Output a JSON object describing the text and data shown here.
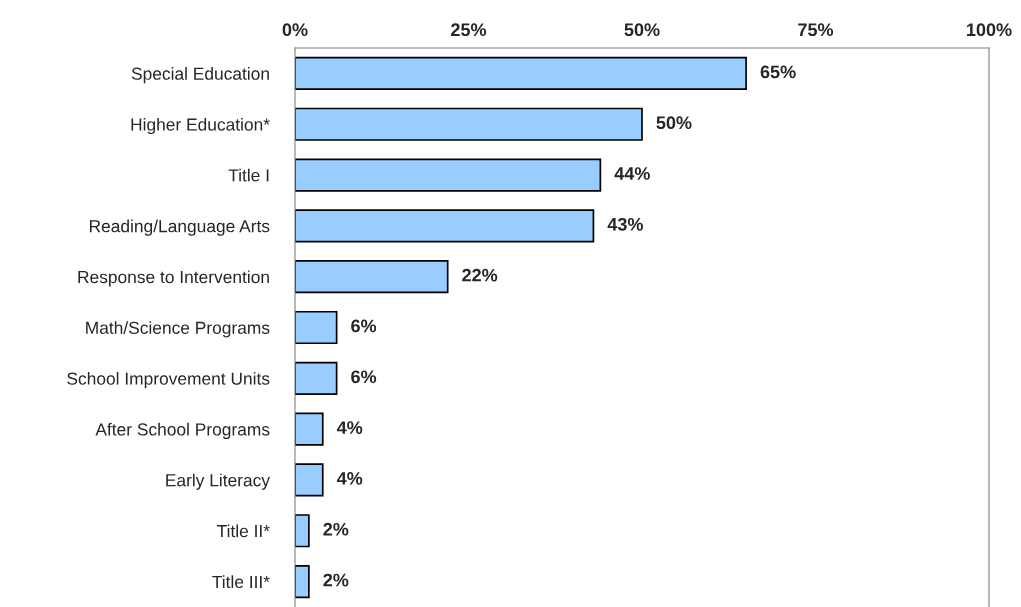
{
  "chart_data": {
    "type": "bar",
    "orientation": "horizontal",
    "categories": [
      "Special Education",
      "Higher Education*",
      "Title I",
      "Reading/Language Arts",
      "Response to Intervention",
      "Math/Science Programs",
      "School Improvement Units",
      "After School Programs",
      "Early Literacy",
      "Title II*",
      "Title III*"
    ],
    "values": [
      65,
      50,
      44,
      43,
      22,
      6,
      6,
      4,
      4,
      2,
      2
    ],
    "value_labels": [
      "65%",
      "50%",
      "44%",
      "43%",
      "22%",
      "6%",
      "6%",
      "4%",
      "4%",
      "2%",
      "2%"
    ],
    "color": "#99ccff",
    "xlim": [
      0,
      100
    ],
    "xticks": [
      {
        "value": 0,
        "label": "0%"
      },
      {
        "value": 25,
        "label": "25%"
      },
      {
        "value": 50,
        "label": "50%"
      },
      {
        "value": 75,
        "label": "75%"
      },
      {
        "value": 100,
        "label": "100%"
      }
    ],
    "grid": false,
    "legend": false
  }
}
